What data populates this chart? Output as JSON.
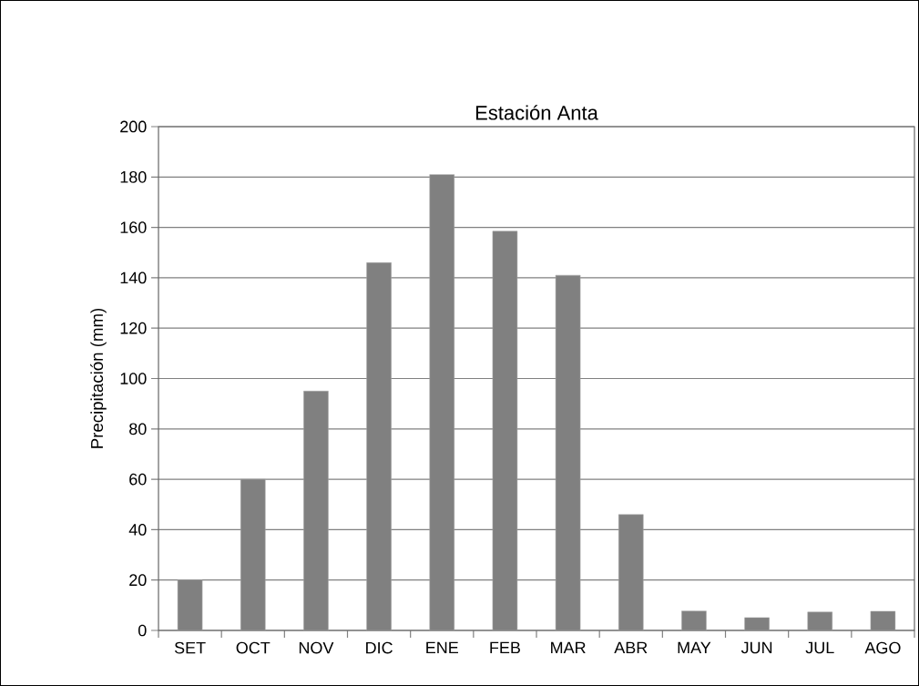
{
  "chart_data": {
    "type": "bar",
    "title": "Estación Anta",
    "ylabel": "Precipitación (mm)",
    "categories": [
      "SET",
      "OCT",
      "NOV",
      "DIC",
      "ENE",
      "FEB",
      "MAR",
      "ABR",
      "MAY",
      "JUN",
      "JUL",
      "AGO"
    ],
    "values": [
      20,
      60,
      95,
      146,
      181,
      158.5,
      141,
      46,
      7.7,
      5.1,
      7.3,
      7.6
    ],
    "color": "#808080",
    "ylim": [
      0,
      200
    ],
    "yticks": [
      0,
      20,
      40,
      60,
      80,
      100,
      120,
      140,
      160,
      180,
      200
    ],
    "grid": "y"
  }
}
